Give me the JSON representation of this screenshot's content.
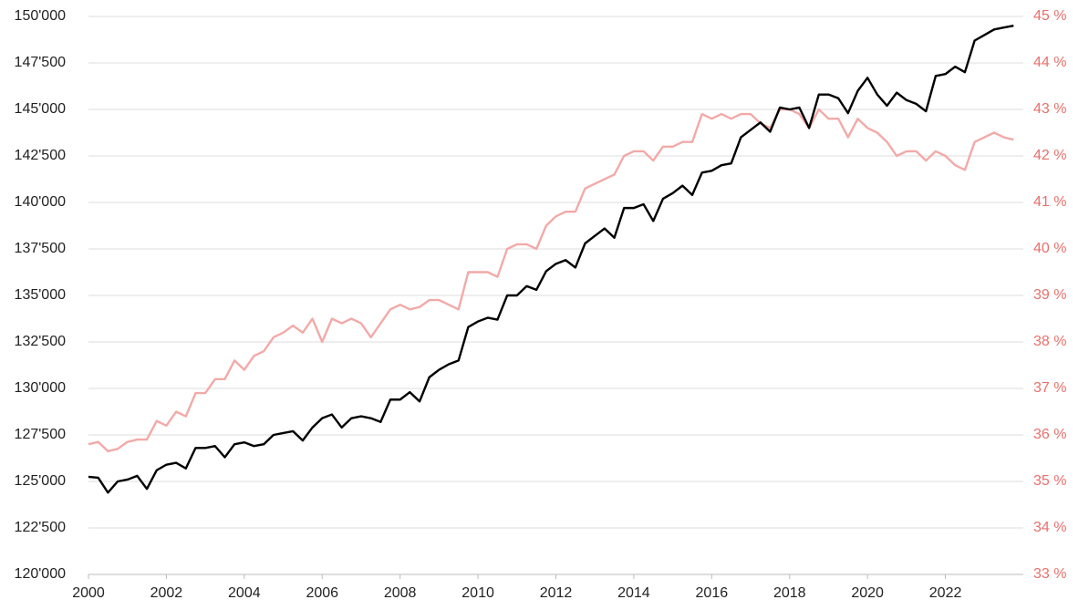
{
  "chart_data": {
    "type": "line",
    "x": [
      2000,
      2000.25,
      2000.5,
      2000.75,
      2001,
      2001.25,
      2001.5,
      2001.75,
      2002,
      2002.25,
      2002.5,
      2002.75,
      2003,
      2003.25,
      2003.5,
      2003.75,
      2004,
      2004.25,
      2004.5,
      2004.75,
      2005,
      2005.25,
      2005.5,
      2005.75,
      2006,
      2006.25,
      2006.5,
      2006.75,
      2007,
      2007.25,
      2007.5,
      2007.75,
      2008,
      2008.25,
      2008.5,
      2008.75,
      2009,
      2009.25,
      2009.5,
      2009.75,
      2010,
      2010.25,
      2010.5,
      2010.75,
      2011,
      2011.25,
      2011.5,
      2011.75,
      2012,
      2012.25,
      2012.5,
      2012.75,
      2013,
      2013.25,
      2013.5,
      2013.75,
      2014,
      2014.25,
      2014.5,
      2014.75,
      2015,
      2015.25,
      2015.5,
      2015.75,
      2016,
      2016.25,
      2016.5,
      2016.75,
      2017,
      2017.25,
      2017.5,
      2017.75,
      2018,
      2018.25,
      2018.5,
      2018.75,
      2019,
      2019.25,
      2019.5,
      2019.75,
      2020,
      2020.25,
      2020.5,
      2020.75,
      2021,
      2021.25,
      2021.5,
      2021.75,
      2022,
      2022.25,
      2022.5,
      2022.75,
      2023,
      2023.25,
      2023.5,
      2023.75
    ],
    "series": [
      {
        "color": "#000000",
        "values": [
          125250,
          125200,
          124400,
          125000,
          125100,
          125300,
          124600,
          125600,
          125900,
          126000,
          125700,
          126800,
          126800,
          126900,
          126300,
          127000,
          127100,
          126900,
          127000,
          127500,
          127600,
          127700,
          127200,
          127900,
          128400,
          128600,
          127900,
          128400,
          128500,
          128400,
          128200,
          129400,
          129400,
          129800,
          129300,
          130600,
          131000,
          131300,
          131500,
          133300,
          133600,
          133800,
          133700,
          135000,
          135000,
          135500,
          135300,
          136300,
          136700,
          136900,
          136500,
          137800,
          138200,
          138600,
          138100,
          139700,
          139700,
          139900,
          139000,
          140200,
          140500,
          140900,
          140400,
          141600,
          141700,
          142000,
          142100,
          143500,
          143900,
          144300,
          143800,
          145100,
          145000,
          145100,
          144000,
          145800,
          145800,
          145600,
          144800,
          146000,
          146700,
          145800,
          145200,
          145900,
          145500,
          145300,
          144900,
          146800,
          146900,
          147300,
          147000,
          148700,
          149000,
          149300,
          149400,
          149500
        ]
      },
      {
        "color": "#f2aaa8",
        "axis": "y2",
        "values": [
          35.8,
          35.85,
          35.65,
          35.7,
          35.85,
          35.9,
          35.9,
          36.3,
          36.2,
          36.5,
          36.4,
          36.9,
          36.9,
          37.2,
          37.2,
          37.6,
          37.4,
          37.7,
          37.8,
          38.1,
          38.2,
          38.35,
          38.2,
          38.5,
          38.0,
          38.5,
          38.4,
          38.5,
          38.4,
          38.1,
          38.4,
          38.7,
          38.8,
          38.7,
          38.75,
          38.9,
          38.9,
          38.8,
          38.7,
          39.5,
          39.5,
          39.5,
          39.4,
          40.0,
          40.1,
          40.1,
          40.0,
          40.5,
          40.7,
          40.8,
          40.8,
          41.3,
          41.4,
          41.5,
          41.6,
          42.0,
          42.1,
          42.1,
          41.9,
          42.2,
          42.2,
          42.3,
          42.3,
          42.9,
          42.8,
          42.9,
          42.8,
          42.9,
          42.9,
          42.7,
          42.6,
          43.0,
          43.0,
          42.9,
          42.6,
          43.0,
          42.8,
          42.8,
          42.4,
          42.8,
          42.6,
          42.5,
          42.3,
          42.0,
          42.1,
          42.1,
          41.9,
          42.1,
          42.0,
          41.8,
          41.7,
          42.3,
          42.4,
          42.5,
          42.4,
          42.35
        ]
      }
    ],
    "xlim": [
      2000,
      2024
    ],
    "xticks": [
      2000,
      2002,
      2004,
      2006,
      2008,
      2010,
      2012,
      2014,
      2016,
      2018,
      2020,
      2022
    ],
    "ylim": [
      120000,
      150000
    ],
    "yticks": [
      {
        "value": 120000,
        "label": "120'000"
      },
      {
        "value": 122500,
        "label": "122'500"
      },
      {
        "value": 125000,
        "label": "125'000"
      },
      {
        "value": 127500,
        "label": "127'500"
      },
      {
        "value": 130000,
        "label": "130'000"
      },
      {
        "value": 132500,
        "label": "132'500"
      },
      {
        "value": 135000,
        "label": "135'000"
      },
      {
        "value": 137500,
        "label": "137'500"
      },
      {
        "value": 140000,
        "label": "140'000"
      },
      {
        "value": 142500,
        "label": "142'500"
      },
      {
        "value": 145000,
        "label": "145'000"
      },
      {
        "value": 147500,
        "label": "147'500"
      },
      {
        "value": 150000,
        "label": "150'000"
      }
    ],
    "y2lim": [
      33,
      45
    ],
    "y2ticks": [
      {
        "value": 33,
        "label": "33 %"
      },
      {
        "value": 34,
        "label": "34 %"
      },
      {
        "value": 35,
        "label": "35 %"
      },
      {
        "value": 36,
        "label": "36 %"
      },
      {
        "value": 37,
        "label": "37 %"
      },
      {
        "value": 38,
        "label": "38 %"
      },
      {
        "value": 39,
        "label": "39 %"
      },
      {
        "value": 40,
        "label": "40 %"
      },
      {
        "value": 41,
        "label": "41 %"
      },
      {
        "value": 42,
        "label": "42 %"
      },
      {
        "value": 43,
        "label": "43 %"
      },
      {
        "value": 44,
        "label": "44 %"
      },
      {
        "value": 45,
        "label": "45 %"
      }
    ],
    "y2_color": "#e8706c",
    "grid": true
  }
}
